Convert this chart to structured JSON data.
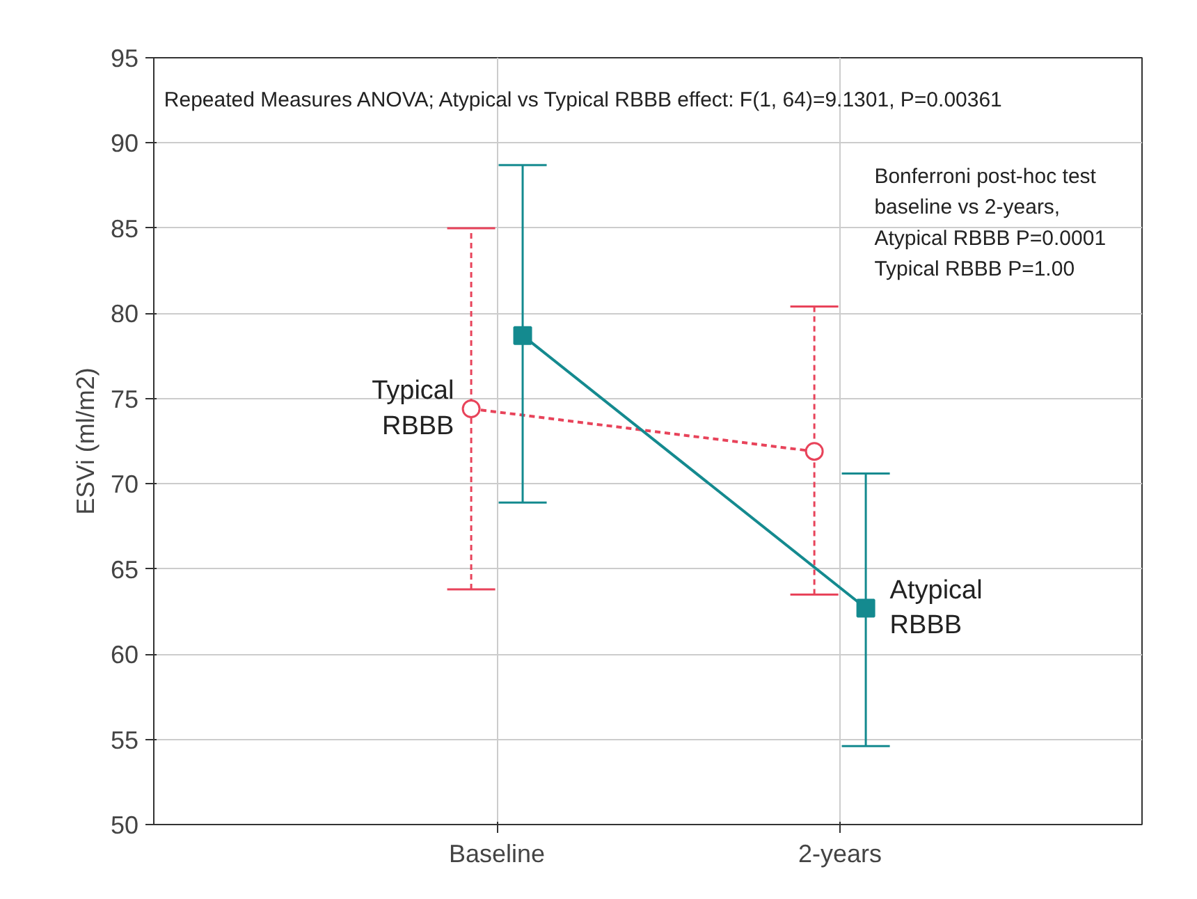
{
  "chart_data": {
    "type": "line",
    "ylabel": "ESVi (ml/m2)",
    "categories": [
      "Baseline",
      "2-years"
    ],
    "series": [
      {
        "name": "Typical RBBB",
        "color": "#e8435a",
        "values": [
          74.4,
          71.9
        ],
        "errors": [
          [
            63.8,
            85.0
          ],
          [
            63.5,
            80.4
          ]
        ],
        "marker": "circle",
        "line_style": "dashed"
      },
      {
        "name": "Atypical RBBB",
        "color": "#148a8f",
        "values": [
          78.7,
          62.7
        ],
        "errors": [
          [
            68.9,
            88.7
          ],
          [
            54.6,
            70.6
          ]
        ],
        "marker": "square",
        "line_style": "solid"
      }
    ],
    "ylim": [
      50,
      95
    ],
    "yticks": [
      50,
      55,
      60,
      65,
      70,
      75,
      80,
      85,
      90,
      95
    ],
    "grid": true,
    "annotations": [
      "Repeated Measures ANOVA; Atypical vs Typical RBBB effect: F(1, 64)=9.1301, P=0.00361",
      "Bonferroni post-hoc test\nbaseline vs 2-years,\nAtypical RBBB P=0.0001\nTypical RBBB P=1.00"
    ]
  }
}
